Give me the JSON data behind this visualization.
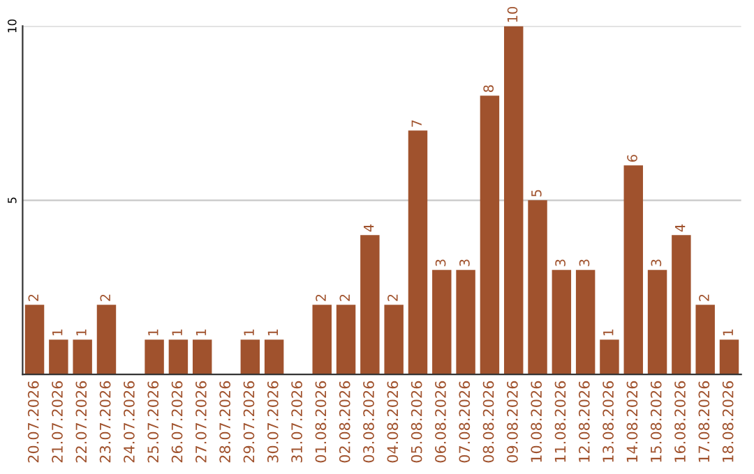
{
  "chart_data": {
    "type": "bar",
    "categories": [
      "20.07.2026",
      "21.07.2026",
      "22.07.2026",
      "23.07.2026",
      "24.07.2026",
      "25.07.2026",
      "26.07.2026",
      "27.07.2026",
      "28.07.2026",
      "29.07.2026",
      "30.07.2026",
      "31.07.2026",
      "01.08.2026",
      "02.08.2026",
      "03.08.2026",
      "04.08.2026",
      "05.08.2026",
      "06.08.2026",
      "07.08.2026",
      "08.08.2026",
      "09.08.2026",
      "10.08.2026",
      "11.08.2026",
      "12.08.2026",
      "13.08.2026",
      "14.08.2026",
      "15.08.2026",
      "16.08.2026",
      "17.08.2026",
      "18.08.2026"
    ],
    "values": [
      2,
      1,
      1,
      2,
      0,
      1,
      1,
      1,
      0,
      1,
      1,
      0,
      2,
      2,
      4,
      2,
      7,
      3,
      3,
      8,
      10,
      5,
      3,
      3,
      1,
      6,
      3,
      4,
      2,
      1
    ],
    "value_labels": [
      "2",
      "1",
      "1",
      "2",
      null,
      "1",
      "1",
      "1",
      null,
      "1",
      "1",
      null,
      "2",
      "2",
      "4",
      "2",
      "7",
      "3",
      "3",
      "8",
      "10",
      "5",
      "3",
      "3",
      "1",
      "6",
      "3",
      "4",
      "2",
      "1"
    ],
    "color": "#a0522d",
    "ylim": [
      0,
      10
    ],
    "yticks": [
      5,
      10
    ],
    "grid": "y"
  }
}
